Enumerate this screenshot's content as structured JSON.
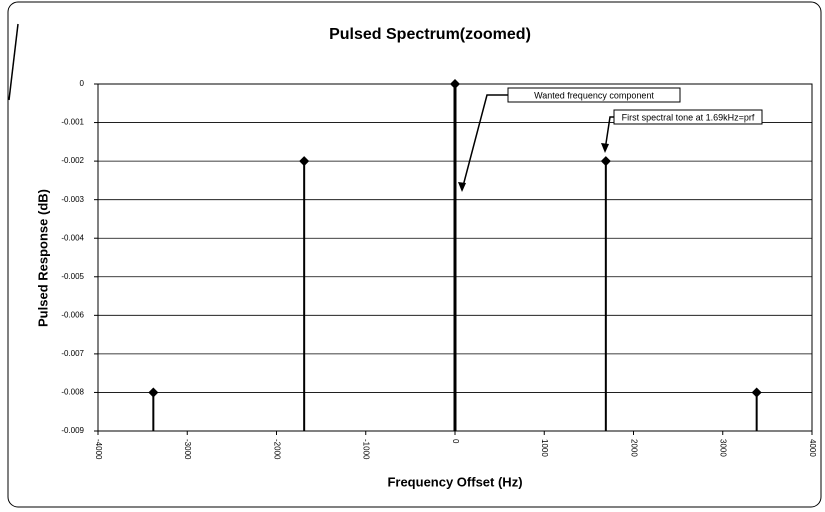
{
  "chart_data": {
    "type": "stem",
    "title": "Pulsed Spectrum(zoomed)",
    "xlabel": "Frequency Offset (Hz)",
    "ylabel": "Pulsed Response (dB)",
    "x": [
      -3380,
      -1690,
      0,
      1690,
      3380
    ],
    "values": [
      -0.008,
      -0.002,
      0,
      -0.002,
      -0.008
    ],
    "color": "#000000",
    "xlim": [
      -4000,
      4000
    ],
    "xticks": [
      -4000,
      -3000,
      -2000,
      -1000,
      0,
      1000,
      2000,
      3000,
      4000
    ],
    "ylim": [
      -0.009,
      0
    ],
    "yticks": [
      0,
      -0.001,
      -0.002,
      -0.003,
      -0.004,
      -0.005,
      -0.006,
      -0.007,
      -0.008,
      -0.009
    ],
    "grid": true,
    "annotations": [
      "Wanted frequency component",
      "First spectral tone at 1.69kHz=prf"
    ]
  }
}
